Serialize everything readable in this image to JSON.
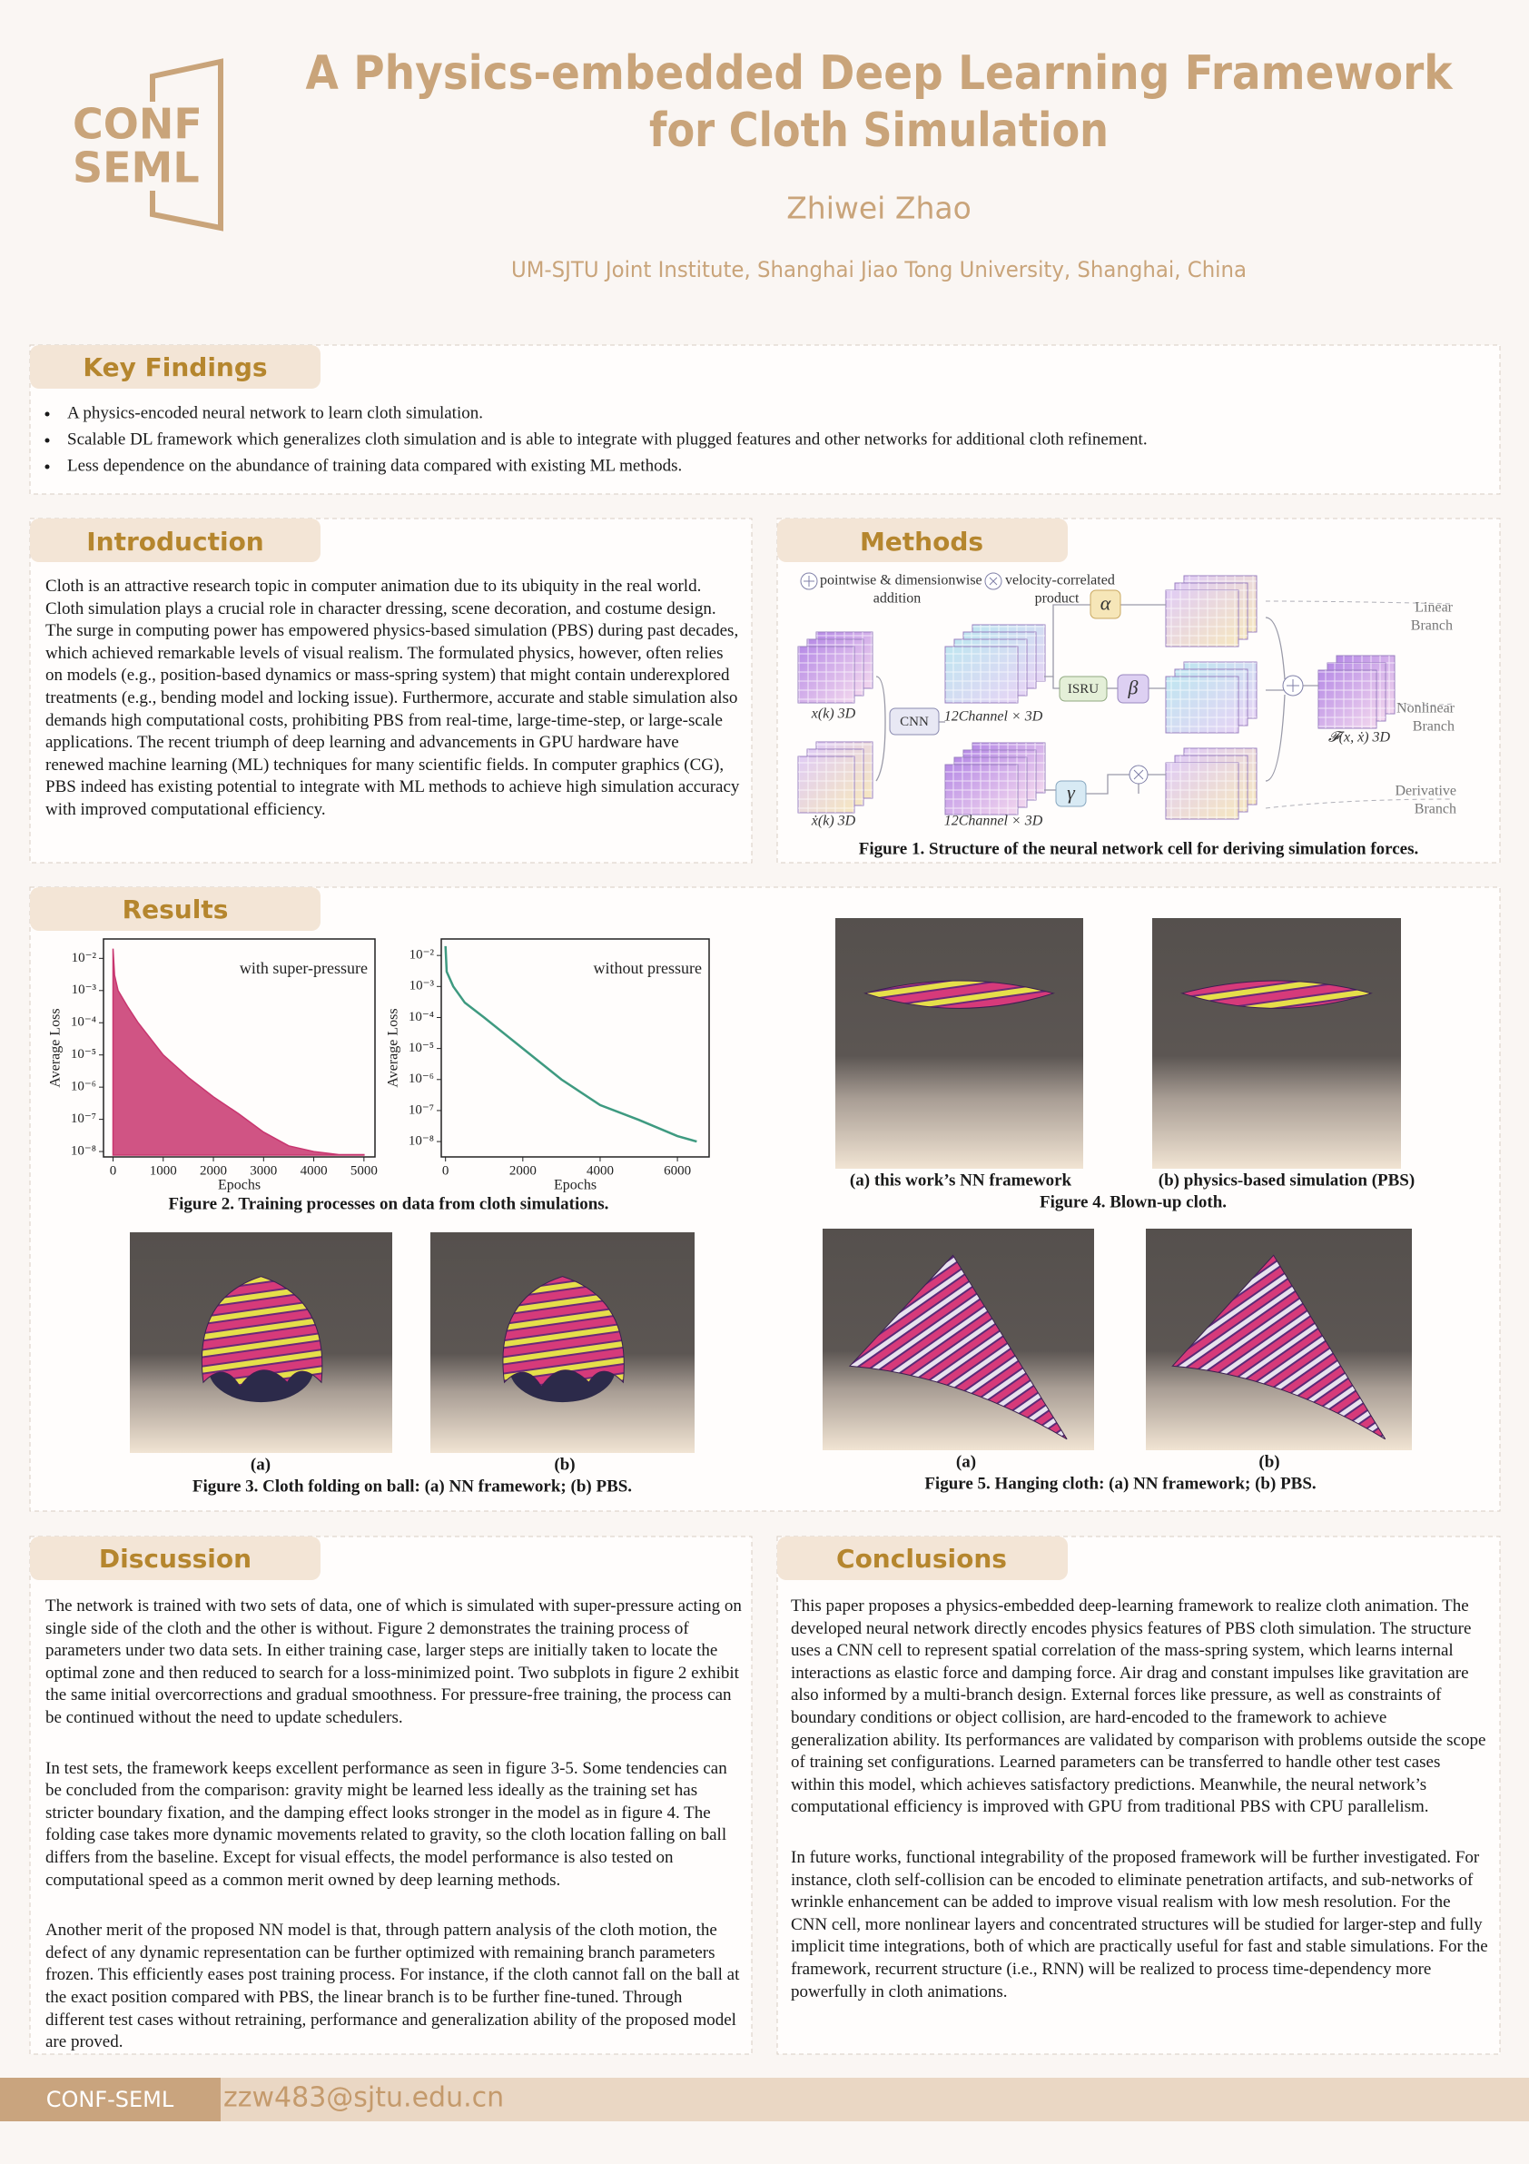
{
  "header": {
    "logo_line1": "CONF",
    "logo_line2": "SEML",
    "title_line1": "A Physics-embedded Deep Learning Framework",
    "title_line2": "for Cloth Simulation",
    "author": "Zhiwei Zhao",
    "affiliation": "UM-SJTU Joint Institute, Shanghai Jiao Tong University, Shanghai, China"
  },
  "key_findings": {
    "heading": "Key Findings",
    "items": [
      "A physics-encoded neural network to learn cloth simulation.",
      "Scalable DL framework which generalizes cloth simulation and is able to integrate with plugged features and other networks for additional cloth refinement.",
      "Less dependence on the abundance of training data compared with existing ML methods."
    ]
  },
  "introduction": {
    "heading": "Introduction",
    "text": "Cloth is an attractive research topic in computer animation due to its ubiquity in the real world. Cloth simulation plays a crucial role in character dressing, scene decoration, and costume design. The surge in computing power has empowered physics-based simulation (PBS) during past decades, which achieved remarkable levels of visual realism. The formulated physics, however, often relies on models (e.g., position-based dynamics or mass-spring system) that might contain underexplored treatments (e.g., bending model and locking issue). Furthermore, accurate and stable simulation also demands high computational costs, prohibiting PBS from real-time, large-time-step, or large-scale applications. The recent triumph of deep learning and advancements in GPU hardware have renewed machine learning (ML) techniques for many scientific fields. In computer graphics (CG), PBS indeed has existing potential to integrate with ML methods to achieve high simulation accuracy with improved computational efficiency."
  },
  "methods": {
    "heading": "Methods",
    "diagram": {
      "legend_add": [
        "pointwise & dimensionwise",
        "addition"
      ],
      "legend_mul": [
        "velocity-correlated",
        "product"
      ],
      "alpha": "α",
      "beta": "β",
      "gamma": "γ",
      "cnn": "CNN",
      "isru": "ISRU",
      "x_label": "x(k) 3D",
      "xdot_label": "ẋ(k) 3D",
      "channel_top": "12Channel × 3D",
      "channel_bottom": "12Channel × 3D",
      "output_label": "𝓕(x, ẋ) 3D",
      "linear_branch": [
        "Linear",
        "Branch"
      ],
      "nonlinear_branch": [
        "Nonlinear",
        "Branch"
      ],
      "derivative_branch": [
        "Derivative",
        "Branch"
      ]
    },
    "caption": "Figure 1. Structure of the neural network cell for deriving simulation forces."
  },
  "results": {
    "heading": "Results",
    "figure2": {
      "charts": [
        {
          "type": "area",
          "annotation": "with super-pressure",
          "ylabel": "Average Loss",
          "xlabel": "Epochs",
          "log_y": true,
          "color": "#c8366f",
          "xlim": [
            -190,
            5220
          ],
          "ylim": [
            6.8e-09,
            0.04
          ],
          "xticks": [
            0,
            1000,
            2000,
            3000,
            4000,
            5000
          ],
          "yticks": [
            {
              "value": 0.01,
              "label": "10⁻²"
            },
            {
              "value": 0.001,
              "label": "10⁻³"
            },
            {
              "value": 0.0001,
              "label": "10⁻⁴"
            },
            {
              "value": 1e-05,
              "label": "10⁻⁵"
            },
            {
              "value": 1e-06,
              "label": "10⁻⁶"
            },
            {
              "value": 1e-07,
              "label": "10⁻⁷"
            },
            {
              "value": 1e-08,
              "label": "10⁻⁸"
            }
          ],
          "x": [
            0,
            30,
            100,
            300,
            500,
            1000,
            1500,
            2000,
            2500,
            3000,
            3500,
            4000,
            4500,
            5000
          ],
          "values": [
            0.02,
            0.003,
            0.001,
            0.0003,
            0.0001,
            1e-05,
            2e-06,
            5e-07,
            1.5e-07,
            4e-08,
            1.5e-08,
            1e-08,
            8e-09,
            8e-09
          ]
        },
        {
          "type": "line",
          "annotation": "without pressure",
          "ylabel": "Average Loss",
          "xlabel": "Epochs",
          "log_y": true,
          "color": "#3e9a80",
          "xlim": [
            -110,
            6820
          ],
          "ylim": [
            3.2e-09,
            0.034
          ],
          "xticks": [
            0,
            2000,
            4000,
            6000
          ],
          "yticks": [
            {
              "value": 0.01,
              "label": "10⁻²"
            },
            {
              "value": 0.001,
              "label": "10⁻³"
            },
            {
              "value": 0.0001,
              "label": "10⁻⁴"
            },
            {
              "value": 1e-05,
              "label": "10⁻⁵"
            },
            {
              "value": 1e-06,
              "label": "10⁻⁶"
            },
            {
              "value": 1e-07,
              "label": "10⁻⁷"
            },
            {
              "value": 1e-08,
              "label": "10⁻⁸"
            }
          ],
          "x": [
            0,
            30,
            200,
            500,
            1000,
            2000,
            3000,
            4000,
            5000,
            6000,
            6500
          ],
          "values": [
            0.02,
            0.003,
            0.001,
            0.0003,
            0.0001,
            1e-05,
            1e-06,
            1.5e-07,
            5e-08,
            1.5e-08,
            1e-08
          ]
        }
      ],
      "caption": "Figure 2. Training processes on data from cloth simulations."
    },
    "figure3": {
      "sub_a": "(a)",
      "sub_b": "(b)",
      "caption": "Figure 3. Cloth folding on ball: (a) NN framework; (b) PBS."
    },
    "figure4": {
      "sub_a": "(a) this work’s NN framework",
      "sub_b": "(b) physics-based simulation (PBS)",
      "caption": "Figure 4. Blown-up cloth."
    },
    "figure5": {
      "sub_a": "(a)",
      "sub_b": "(b)",
      "caption": "Figure 5. Hanging cloth: (a) NN framework; (b) PBS."
    }
  },
  "discussion": {
    "heading": "Discussion",
    "paragraphs": [
      "The network is trained with two sets of data, one of which is simulated with super-pressure acting on single side of the cloth and the other is without. Figure 2 demonstrates the training process of parameters under two data sets. In either training case, larger steps are initially taken to locate the optimal zone and then reduced to search for a loss-minimized point. Two subplots in figure 2 exhibit the same initial overcorrections and gradual smoothness. For pressure-free training, the process can be continued without the need to update schedulers.",
      "In test sets, the framework keeps excellent performance as seen in figure 3-5. Some tendencies can be concluded from the comparison: gravity might be learned less ideally as the training set has stricter boundary fixation, and the damping effect looks stronger in the model as in figure 4. The folding case takes more dynamic movements related to gravity, so the cloth location falling on ball differs from the baseline. Except for visual effects, the model performance is also tested on computational speed as a common merit owned by deep learning methods.",
      "Another merit of the proposed NN model is that, through pattern analysis of the cloth motion, the defect of any dynamic representation can be further optimized with remaining branch parameters frozen. This efficiently eases post training process. For instance, if the cloth cannot fall on the ball at the exact position compared with PBS, the linear branch is to be further fine-tuned. Through different test cases without retraining, performance and generalization ability of the proposed model are proved."
    ]
  },
  "conclusions": {
    "heading": "Conclusions",
    "paragraphs": [
      "This paper proposes a physics-embedded deep-learning framework to realize cloth animation. The developed neural network directly encodes physics features of PBS cloth simulation. The structure uses a CNN cell to represent spatial correlation of the mass-spring system, which learns internal interactions as elastic force and damping force. Air drag and constant impulses like gravitation are also informed by a multi-branch design. External forces like pressure, as well as constraints of boundary conditions or object collision, are hard-encoded to the framework to achieve generalization ability. Its performances are validated by comparison with problems outside the scope of training set configurations. Learned parameters can be transferred to handle other test cases within this model, which achieves satisfactory predictions. Meanwhile, the neural network’s computational efficiency is improved with GPU from traditional PBS with CPU parallelism.",
      "In future works, functional integrability of the proposed framework will be further investigated. For instance, cloth self-collision can be encoded to eliminate penetration artifacts, and sub-networks of wrinkle enhancement can be added to improve visual realism with low mesh resolution. For the CNN cell, more nonlinear layers and concentrated structures will be studied for larger-step and fully implicit time integrations, both of which are practically useful for fast and stable simulations. For the framework, recurrent structure (i.e., RNN) will be realized to process time-dependency more powerfully in cloth animations."
    ]
  },
  "footer": {
    "label": "CONF-SEML",
    "email": "zzw483@sjtu.edu.cn"
  }
}
